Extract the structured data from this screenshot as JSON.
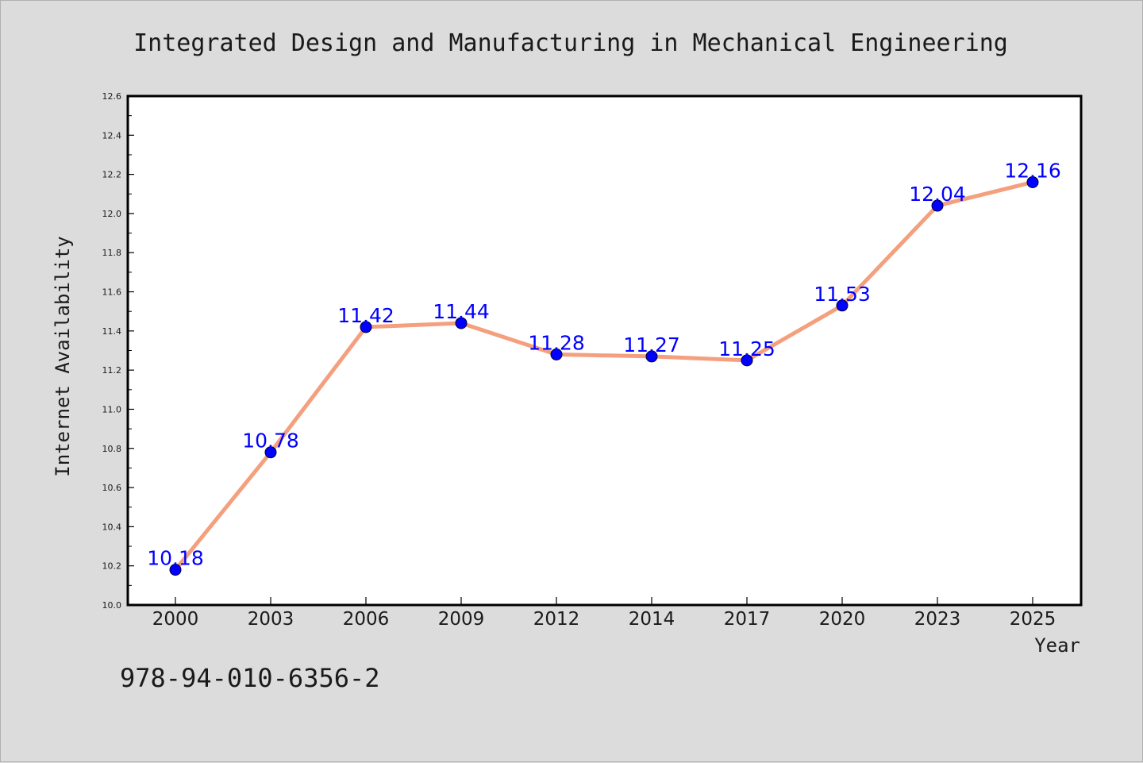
{
  "chart_data": {
    "type": "line",
    "title": "Integrated Design and Manufacturing in Mechanical Engineering",
    "xlabel": "Year",
    "ylabel": "Internet Availability",
    "categories": [
      "2000",
      "2003",
      "2006",
      "2009",
      "2012",
      "2014",
      "2017",
      "2020",
      "2023",
      "2025"
    ],
    "series": [
      {
        "values": [
          10.18,
          10.78,
          11.42,
          11.44,
          11.28,
          11.27,
          11.25,
          11.53,
          12.04,
          12.16
        ],
        "labels": [
          "10.18",
          "10.78",
          "11.42",
          "11.44",
          "11.28",
          "11.27",
          "11.25",
          "11.53",
          "12.04",
          "12.16"
        ],
        "line_color": "#f4a07e",
        "marker_color": "#0000ff"
      }
    ],
    "ylim": [
      10.0,
      12.6
    ],
    "yticks": [
      "10.0",
      "10.2",
      "10.4",
      "10.6",
      "10.8",
      "11.0",
      "11.2",
      "11.4",
      "11.6",
      "11.8",
      "12.0",
      "12.2",
      "12.4",
      "12.6"
    ],
    "grid": false,
    "legend": "none"
  },
  "annotation": "978-94-010-6356-2",
  "colors": {
    "background": "#dcdcdc",
    "plot_background": "#ffffff",
    "line": "#f4a07e",
    "marker": "#0000ff",
    "data_label": "#0000ff"
  }
}
